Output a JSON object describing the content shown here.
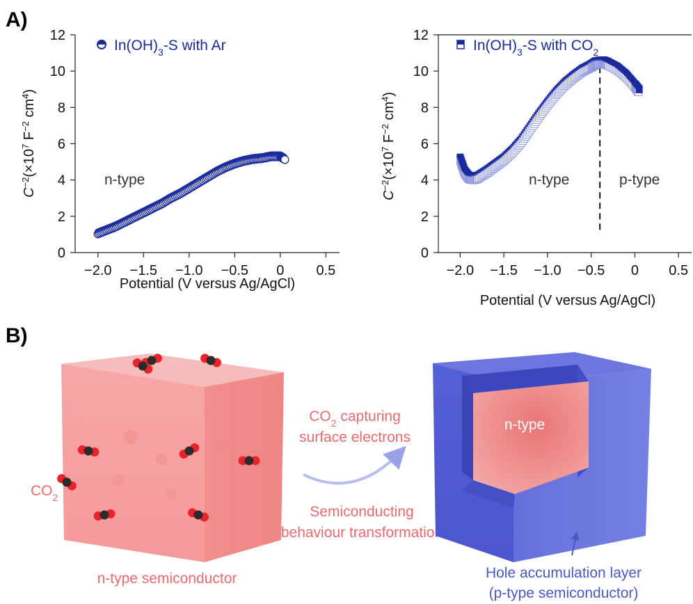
{
  "panel_a_label": "A)",
  "panel_b_label": "B)",
  "colors": {
    "series": "#1a2a9c",
    "n_type": "#f08c8c",
    "p_type": "#5a64d8",
    "text_pink": "#ec6a6e",
    "text_blue": "#4a58c8"
  },
  "chart_data": [
    {
      "type": "scatter",
      "legend": "In(OH)3-S with Ar",
      "xlabel": "Potential (V versus Ag/AgCl)",
      "ylabel": "C−2(×107 F−2 cm4)",
      "xlim": [
        -2.25,
        0.65
      ],
      "ylim": [
        0,
        12
      ],
      "xticks": [
        "−2.0",
        "−1.5",
        "−1.0",
        "−0.5",
        "0",
        "0.5"
      ],
      "yticks": [
        "0",
        "2",
        "4",
        "6",
        "8",
        "10",
        "12"
      ],
      "annotations": [
        "n-type"
      ],
      "series": [
        {
          "x": [
            -2.0,
            -1.9,
            -1.8,
            -1.7,
            -1.6,
            -1.5,
            -1.4,
            -1.3,
            -1.2,
            -1.1,
            -1.0,
            -0.9,
            -0.8,
            -0.7,
            -0.6,
            -0.5,
            -0.4,
            -0.3,
            -0.2,
            -0.1,
            0.0,
            0.05
          ],
          "y": [
            1.1,
            1.3,
            1.5,
            1.75,
            2.0,
            2.25,
            2.5,
            2.75,
            3.05,
            3.3,
            3.6,
            3.9,
            4.2,
            4.5,
            4.75,
            4.95,
            5.1,
            5.2,
            5.25,
            5.35,
            5.35,
            5.2
          ]
        }
      ]
    },
    {
      "type": "scatter",
      "legend": "In(OH)3-S with CO2",
      "xlabel": "Potential (V versus Ag/AgCl)",
      "ylabel": "C−2(×107 F−2 cm4)",
      "xlim": [
        -2.25,
        0.65
      ],
      "ylim": [
        0,
        12
      ],
      "xticks": [
        "−2.0",
        "−1.5",
        "−1.0",
        "−0.5",
        "0",
        "0.5"
      ],
      "yticks": [
        "0",
        "2",
        "4",
        "6",
        "8",
        "10",
        "12"
      ],
      "annotations": [
        "n-type",
        "p-type"
      ],
      "vline_x": -0.4,
      "series": [
        {
          "x": [
            -2.0,
            -1.95,
            -1.9,
            -1.85,
            -1.8,
            -1.7,
            -1.6,
            -1.5,
            -1.4,
            -1.3,
            -1.2,
            -1.1,
            -1.0,
            -0.9,
            -0.8,
            -0.7,
            -0.6,
            -0.5,
            -0.45,
            -0.4,
            -0.35,
            -0.3,
            -0.2,
            -0.1,
            0.0,
            0.05
          ],
          "y": [
            5.3,
            4.6,
            4.3,
            4.25,
            4.3,
            4.6,
            4.95,
            5.3,
            5.75,
            6.3,
            7.0,
            7.7,
            8.35,
            8.95,
            9.45,
            9.85,
            10.2,
            10.45,
            10.6,
            10.65,
            10.65,
            10.55,
            10.3,
            9.9,
            9.35,
            9.05
          ]
        }
      ]
    }
  ],
  "diagram": {
    "left_cube_label": "n-type semiconductor",
    "co2_label_prefix": "CO",
    "co2_sub": "2",
    "arrow_text_line1_prefix": "CO",
    "arrow_text_line1_sub": "2",
    "arrow_text_line1_suffix": " capturing",
    "arrow_text_line2": "surface electrons",
    "arrow_text_line3": "Semiconducting",
    "arrow_text_line4": "behaviour transformation",
    "inner_label": "n-type",
    "right_label_line1": "Hole accumulation layer",
    "right_label_line2": "(p-type semiconductor)"
  }
}
